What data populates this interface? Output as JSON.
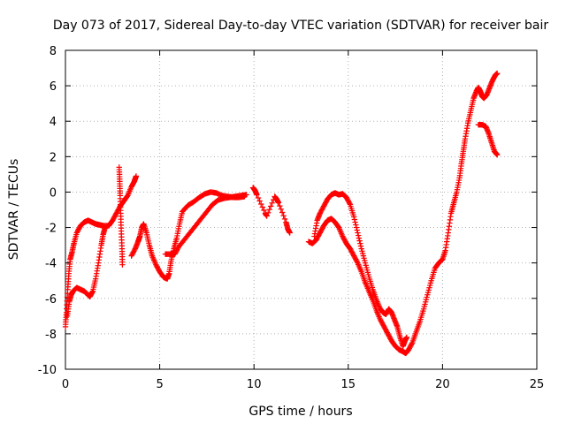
{
  "chart_data": {
    "type": "scatter",
    "title": "Day 073 of 2017, Sidereal Day-to-day VTEC variation (SDTVAR) for receiver bair",
    "xlabel": "GPS time / hours",
    "ylabel": "SDTVAR / TECUs",
    "xlim": [
      0,
      25
    ],
    "ylim": [
      -10,
      8
    ],
    "xticks": [
      0,
      5,
      10,
      15,
      20,
      25
    ],
    "yticks": [
      -10,
      -8,
      -6,
      -4,
      -2,
      0,
      2,
      4,
      6,
      8
    ],
    "grid": true,
    "marker": "plus",
    "color": "#ff0000",
    "series": [
      {
        "values": [
          [
            0.0,
            -7.6
          ],
          [
            0.05,
            -6.8
          ],
          [
            0.12,
            -5.5
          ],
          [
            0.18,
            -4.6
          ],
          [
            0.25,
            -3.8
          ],
          [
            0.35,
            -3.4
          ],
          [
            0.45,
            -2.9
          ],
          [
            0.6,
            -2.3
          ],
          [
            0.8,
            -1.9
          ],
          [
            1.0,
            -1.7
          ],
          [
            1.2,
            -1.6
          ],
          [
            1.4,
            -1.7
          ],
          [
            1.6,
            -1.8
          ],
          [
            1.8,
            -1.85
          ],
          [
            2.0,
            -1.9
          ],
          [
            2.3,
            -1.9
          ],
          [
            2.5,
            -1.6
          ],
          [
            2.7,
            -1.2
          ],
          [
            2.9,
            -0.8
          ],
          [
            3.1,
            -0.5
          ],
          [
            3.3,
            -0.2
          ],
          [
            3.5,
            0.3
          ],
          [
            3.65,
            0.6
          ],
          [
            3.75,
            0.9
          ]
        ]
      },
      {
        "values": [
          [
            0.1,
            -7.0
          ],
          [
            0.2,
            -6.2
          ],
          [
            0.3,
            -5.8
          ],
          [
            0.4,
            -5.6
          ],
          [
            0.6,
            -5.4
          ],
          [
            0.8,
            -5.5
          ],
          [
            1.0,
            -5.6
          ],
          [
            1.2,
            -5.8
          ],
          [
            1.3,
            -5.9
          ],
          [
            1.45,
            -5.6
          ],
          [
            1.6,
            -4.9
          ],
          [
            1.75,
            -4.0
          ],
          [
            1.9,
            -3.0
          ],
          [
            2.0,
            -2.4
          ],
          [
            2.1,
            -2.0
          ]
        ]
      },
      {
        "values": [
          [
            2.85,
            1.4
          ],
          [
            2.88,
            0.6
          ],
          [
            2.9,
            -0.2
          ],
          [
            2.93,
            -1.2
          ],
          [
            2.96,
            -2.2
          ],
          [
            3.0,
            -3.2
          ],
          [
            3.02,
            -4.1
          ]
        ]
      },
      {
        "values": [
          [
            3.5,
            -3.6
          ],
          [
            3.7,
            -3.2
          ],
          [
            3.85,
            -2.8
          ],
          [
            3.95,
            -2.5
          ],
          [
            4.05,
            -2.0
          ],
          [
            4.15,
            -1.8
          ],
          [
            4.3,
            -2.3
          ],
          [
            4.45,
            -3.0
          ],
          [
            4.6,
            -3.6
          ],
          [
            4.8,
            -4.1
          ],
          [
            5.0,
            -4.5
          ],
          [
            5.2,
            -4.8
          ],
          [
            5.4,
            -4.9
          ],
          [
            5.5,
            -4.6
          ],
          [
            5.6,
            -3.9
          ],
          [
            5.75,
            -3.2
          ],
          [
            5.9,
            -2.6
          ],
          [
            6.05,
            -1.8
          ],
          [
            6.2,
            -1.1
          ],
          [
            6.5,
            -0.75
          ],
          [
            6.8,
            -0.55
          ],
          [
            7.1,
            -0.3
          ],
          [
            7.4,
            -0.1
          ],
          [
            7.7,
            0.0
          ],
          [
            8.0,
            -0.05
          ],
          [
            8.3,
            -0.2
          ],
          [
            8.6,
            -0.25
          ],
          [
            8.9,
            -0.3
          ],
          [
            9.2,
            -0.3
          ],
          [
            9.5,
            -0.25
          ]
        ]
      },
      {
        "values": [
          [
            5.3,
            -3.5
          ],
          [
            5.6,
            -3.5
          ],
          [
            5.8,
            -3.5
          ],
          [
            6.0,
            -3.1
          ],
          [
            6.3,
            -2.7
          ],
          [
            6.6,
            -2.3
          ],
          [
            6.9,
            -1.9
          ],
          [
            7.2,
            -1.5
          ],
          [
            7.5,
            -1.1
          ],
          [
            7.8,
            -0.7
          ],
          [
            8.1,
            -0.45
          ],
          [
            8.4,
            -0.35
          ],
          [
            8.7,
            -0.3
          ],
          [
            9.0,
            -0.25
          ],
          [
            9.3,
            -0.2
          ],
          [
            9.6,
            -0.15
          ]
        ]
      },
      {
        "values": [
          [
            9.95,
            0.25
          ],
          [
            10.05,
            0.1
          ],
          [
            10.15,
            -0.15
          ],
          [
            10.6,
            -1.2
          ],
          [
            10.68,
            -1.35
          ],
          [
            11.1,
            -0.25
          ],
          [
            11.2,
            -0.4
          ],
          [
            11.3,
            -0.6
          ],
          [
            11.7,
            -1.7
          ],
          [
            11.8,
            -2.1
          ],
          [
            11.9,
            -2.3
          ]
        ]
      },
      {
        "values": [
          [
            12.9,
            -2.8
          ],
          [
            13.1,
            -2.9
          ],
          [
            13.3,
            -2.7
          ],
          [
            13.5,
            -2.3
          ],
          [
            13.7,
            -1.9
          ],
          [
            13.9,
            -1.6
          ],
          [
            14.1,
            -1.5
          ],
          [
            14.3,
            -1.7
          ],
          [
            14.5,
            -2.0
          ],
          [
            14.7,
            -2.5
          ],
          [
            14.9,
            -2.9
          ],
          [
            15.1,
            -3.2
          ],
          [
            15.3,
            -3.6
          ],
          [
            15.5,
            -4.0
          ],
          [
            15.7,
            -4.5
          ],
          [
            15.9,
            -5.1
          ],
          [
            16.1,
            -5.6
          ],
          [
            16.3,
            -6.1
          ],
          [
            16.5,
            -6.7
          ],
          [
            16.7,
            -7.2
          ],
          [
            16.9,
            -7.6
          ],
          [
            17.1,
            -8.0
          ],
          [
            17.3,
            -8.4
          ],
          [
            17.5,
            -8.7
          ],
          [
            17.7,
            -8.9
          ],
          [
            17.9,
            -9.0
          ],
          [
            18.05,
            -9.1
          ],
          [
            18.2,
            -8.9
          ],
          [
            18.4,
            -8.5
          ],
          [
            18.6,
            -7.9
          ],
          [
            18.8,
            -7.3
          ],
          [
            19.0,
            -6.6
          ],
          [
            19.2,
            -5.8
          ],
          [
            19.4,
            -5.0
          ],
          [
            19.6,
            -4.3
          ],
          [
            19.8,
            -4.0
          ],
          [
            20.0,
            -3.8
          ],
          [
            20.15,
            -3.3
          ],
          [
            20.3,
            -2.3
          ],
          [
            20.45,
            -1.2
          ],
          [
            20.6,
            -0.6
          ],
          [
            20.75,
            0.0
          ],
          [
            20.9,
            0.8
          ],
          [
            21.0,
            1.6
          ],
          [
            21.1,
            2.3
          ],
          [
            21.2,
            3.0
          ],
          [
            21.35,
            3.9
          ],
          [
            21.5,
            4.6
          ],
          [
            21.65,
            5.3
          ],
          [
            21.8,
            5.7
          ],
          [
            21.9,
            5.9
          ],
          [
            22.0,
            5.7
          ],
          [
            22.1,
            5.4
          ],
          [
            22.2,
            5.3
          ],
          [
            22.35,
            5.5
          ],
          [
            22.5,
            5.9
          ],
          [
            22.65,
            6.3
          ],
          [
            22.8,
            6.6
          ],
          [
            22.9,
            6.7
          ]
        ]
      },
      {
        "values": [
          [
            13.2,
            -2.5
          ],
          [
            13.35,
            -1.6
          ],
          [
            13.5,
            -1.2
          ],
          [
            13.7,
            -0.8
          ],
          [
            13.9,
            -0.4
          ],
          [
            14.1,
            -0.15
          ],
          [
            14.3,
            -0.05
          ],
          [
            14.5,
            -0.15
          ],
          [
            14.7,
            -0.1
          ],
          [
            14.9,
            -0.3
          ],
          [
            15.1,
            -0.7
          ],
          [
            15.3,
            -1.4
          ],
          [
            15.5,
            -2.3
          ],
          [
            15.7,
            -3.2
          ],
          [
            15.9,
            -4.0
          ],
          [
            16.1,
            -4.8
          ],
          [
            16.3,
            -5.5
          ],
          [
            16.5,
            -6.1
          ],
          [
            16.7,
            -6.6
          ],
          [
            16.85,
            -6.8
          ],
          [
            17.0,
            -6.9
          ],
          [
            17.15,
            -6.6
          ],
          [
            17.3,
            -6.8
          ],
          [
            17.45,
            -7.2
          ],
          [
            17.6,
            -7.6
          ],
          [
            17.75,
            -8.2
          ],
          [
            17.9,
            -8.7
          ],
          [
            18.0,
            -8.4
          ],
          [
            18.1,
            -8.2
          ]
        ]
      },
      {
        "values": [
          [
            21.9,
            3.8
          ],
          [
            22.1,
            3.8
          ],
          [
            22.3,
            3.7
          ],
          [
            22.45,
            3.3
          ],
          [
            22.6,
            2.8
          ],
          [
            22.75,
            2.3
          ],
          [
            22.9,
            2.1
          ]
        ]
      }
    ]
  }
}
